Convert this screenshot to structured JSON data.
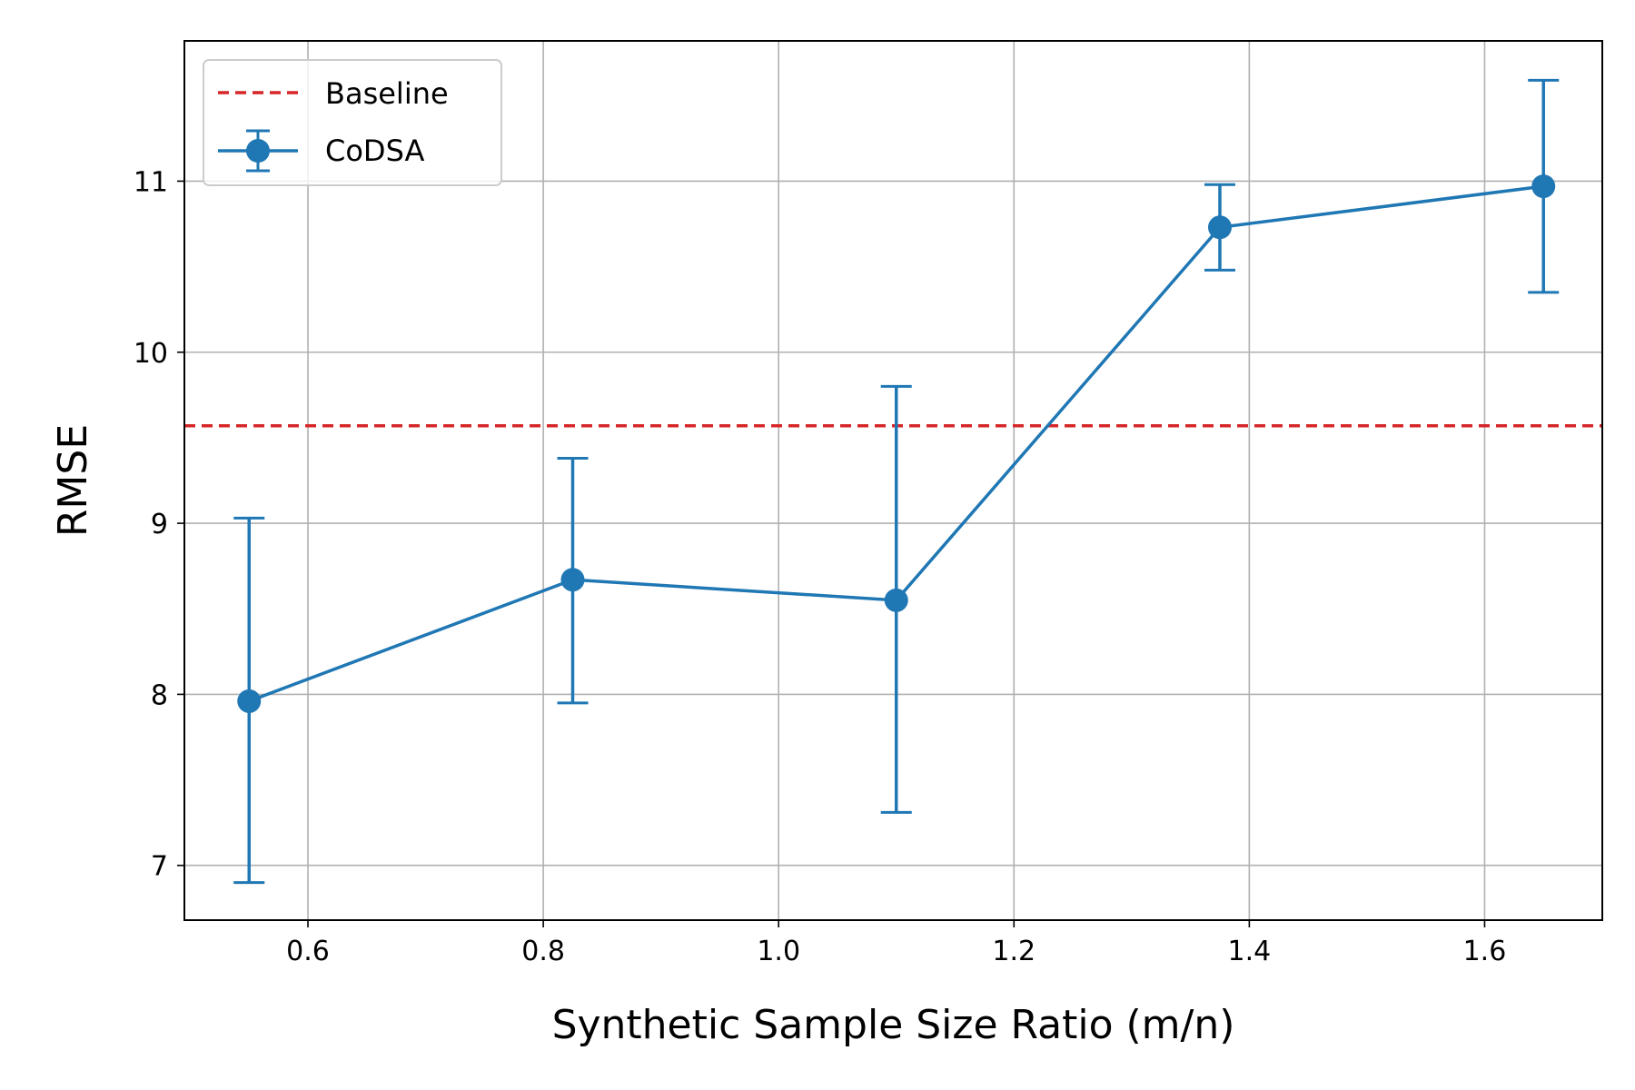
{
  "chart_data": {
    "type": "line",
    "title": "",
    "xlabel": "Synthetic Sample Size Ratio (m/n)",
    "ylabel": "RMSE",
    "xlim": [
      0.495,
      1.7
    ],
    "ylim": [
      6.68,
      11.82
    ],
    "x_ticks": [
      0.6,
      0.8,
      1.0,
      1.2,
      1.4,
      1.6
    ],
    "x_tick_labels": [
      "0.6",
      "0.8",
      "1.0",
      "1.2",
      "1.4",
      "1.6"
    ],
    "y_ticks": [
      7,
      8,
      9,
      10,
      11
    ],
    "y_tick_labels": [
      "7",
      "8",
      "9",
      "10",
      "11"
    ],
    "grid": true,
    "legend": {
      "position": "upper-left"
    },
    "series": [
      {
        "name": "Baseline",
        "kind": "hline",
        "style": "dashed",
        "color": "#d62728",
        "y": 9.57
      },
      {
        "name": "CoDSA",
        "kind": "errorbar",
        "color": "#1f77b4",
        "x": [
          0.55,
          0.825,
          1.1,
          1.375,
          1.65
        ],
        "y": [
          7.96,
          8.67,
          8.55,
          10.73,
          10.97
        ],
        "yerr_low": [
          6.9,
          7.95,
          7.31,
          10.48,
          10.35
        ],
        "yerr_high": [
          9.03,
          9.38,
          9.8,
          10.98,
          11.59
        ]
      }
    ]
  }
}
